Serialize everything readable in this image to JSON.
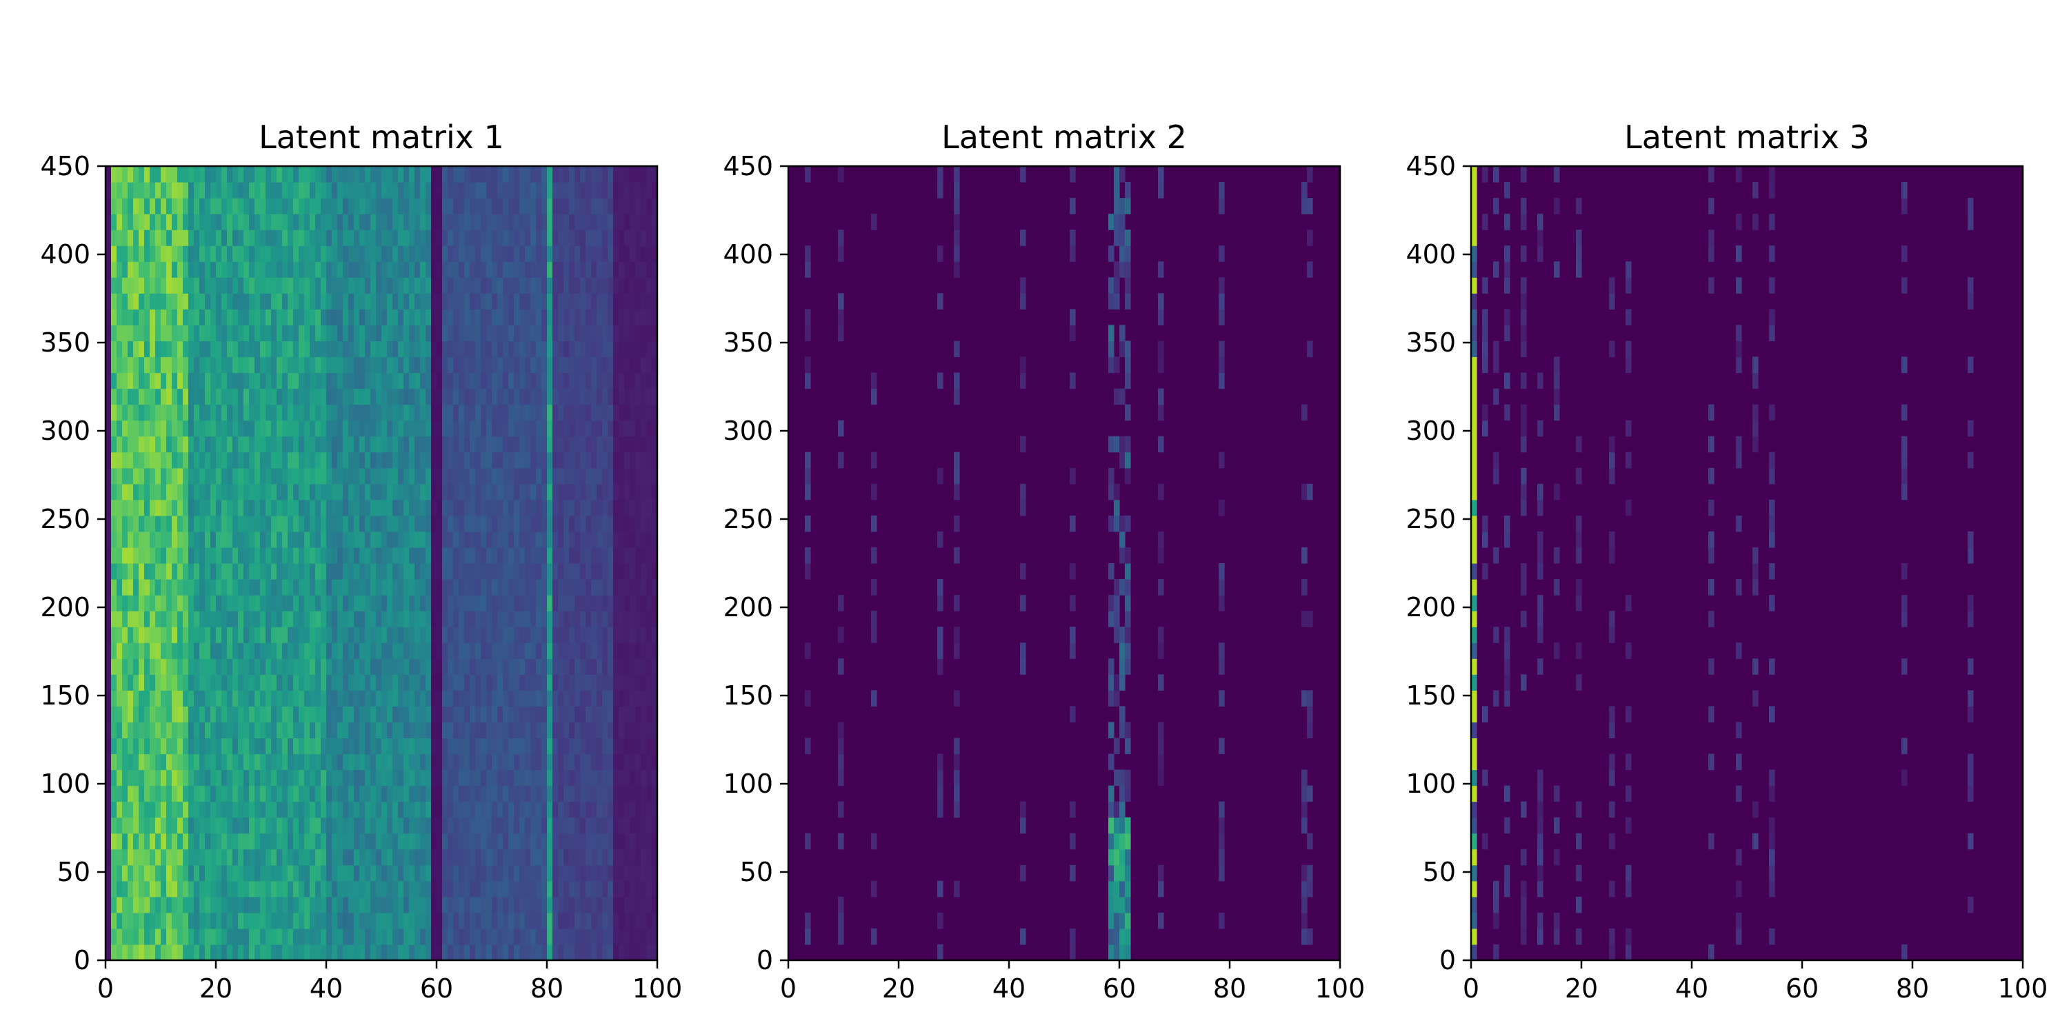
{
  "chart_data": [
    {
      "type": "heatmap",
      "title": "Latent matrix 1",
      "xlim": [
        0,
        100
      ],
      "ylim": [
        0,
        450
      ],
      "x_ticks": [
        "0",
        "20",
        "40",
        "60",
        "80",
        "100"
      ],
      "y_ticks": [
        "0",
        "50",
        "100",
        "150",
        "200",
        "250",
        "300",
        "350",
        "400",
        "450"
      ],
      "colormap": "viridis",
      "grid": false,
      "legend": "none",
      "column_profile_description": [
        {
          "x_range": [
            0,
            1
          ],
          "level": 0.05
        },
        {
          "x_range": [
            1,
            15
          ],
          "level": 0.72
        },
        {
          "x_range": [
            15,
            40
          ],
          "level": 0.55
        },
        {
          "x_range": [
            40,
            59
          ],
          "level": 0.45
        },
        {
          "x_range": [
            59,
            61
          ],
          "level": 0.05
        },
        {
          "x_range": [
            61,
            80
          ],
          "level": 0.25
        },
        {
          "x_range": [
            80,
            81
          ],
          "level": 0.55
        },
        {
          "x_range": [
            81,
            92
          ],
          "level": 0.2
        },
        {
          "x_range": [
            92,
            100
          ],
          "level": 0.08
        }
      ]
    },
    {
      "type": "heatmap",
      "title": "Latent matrix 2",
      "xlim": [
        0,
        100
      ],
      "ylim": [
        0,
        450
      ],
      "x_ticks": [
        "0",
        "20",
        "40",
        "60",
        "80",
        "100"
      ],
      "y_ticks": [
        "0",
        "50",
        "100",
        "150",
        "200",
        "250",
        "300",
        "350",
        "400",
        "450"
      ],
      "colormap": "viridis",
      "grid": false,
      "legend": "none",
      "notable_columns": [
        3,
        9,
        15,
        27,
        30,
        42,
        51,
        59,
        60,
        61,
        67,
        78,
        93,
        94
      ],
      "bright_region": {
        "x_range": [
          58,
          62
        ],
        "y_range": [
          0,
          75
        ]
      }
    },
    {
      "type": "heatmap",
      "title": "Latent matrix 3",
      "xlim": [
        0,
        100
      ],
      "ylim": [
        0,
        450
      ],
      "x_ticks": [
        "0",
        "20",
        "40",
        "60",
        "80",
        "100"
      ],
      "y_ticks": [
        "0",
        "50",
        "100",
        "150",
        "200",
        "250",
        "300",
        "350",
        "400",
        "450"
      ],
      "colormap": "viridis",
      "grid": false,
      "legend": "none",
      "bright_column": {
        "x_range": [
          0,
          1
        ],
        "level": 0.9
      },
      "notable_columns": [
        2,
        4,
        6,
        9,
        12,
        15,
        19,
        25,
        28,
        43,
        48,
        51,
        54,
        78,
        90
      ]
    }
  ]
}
